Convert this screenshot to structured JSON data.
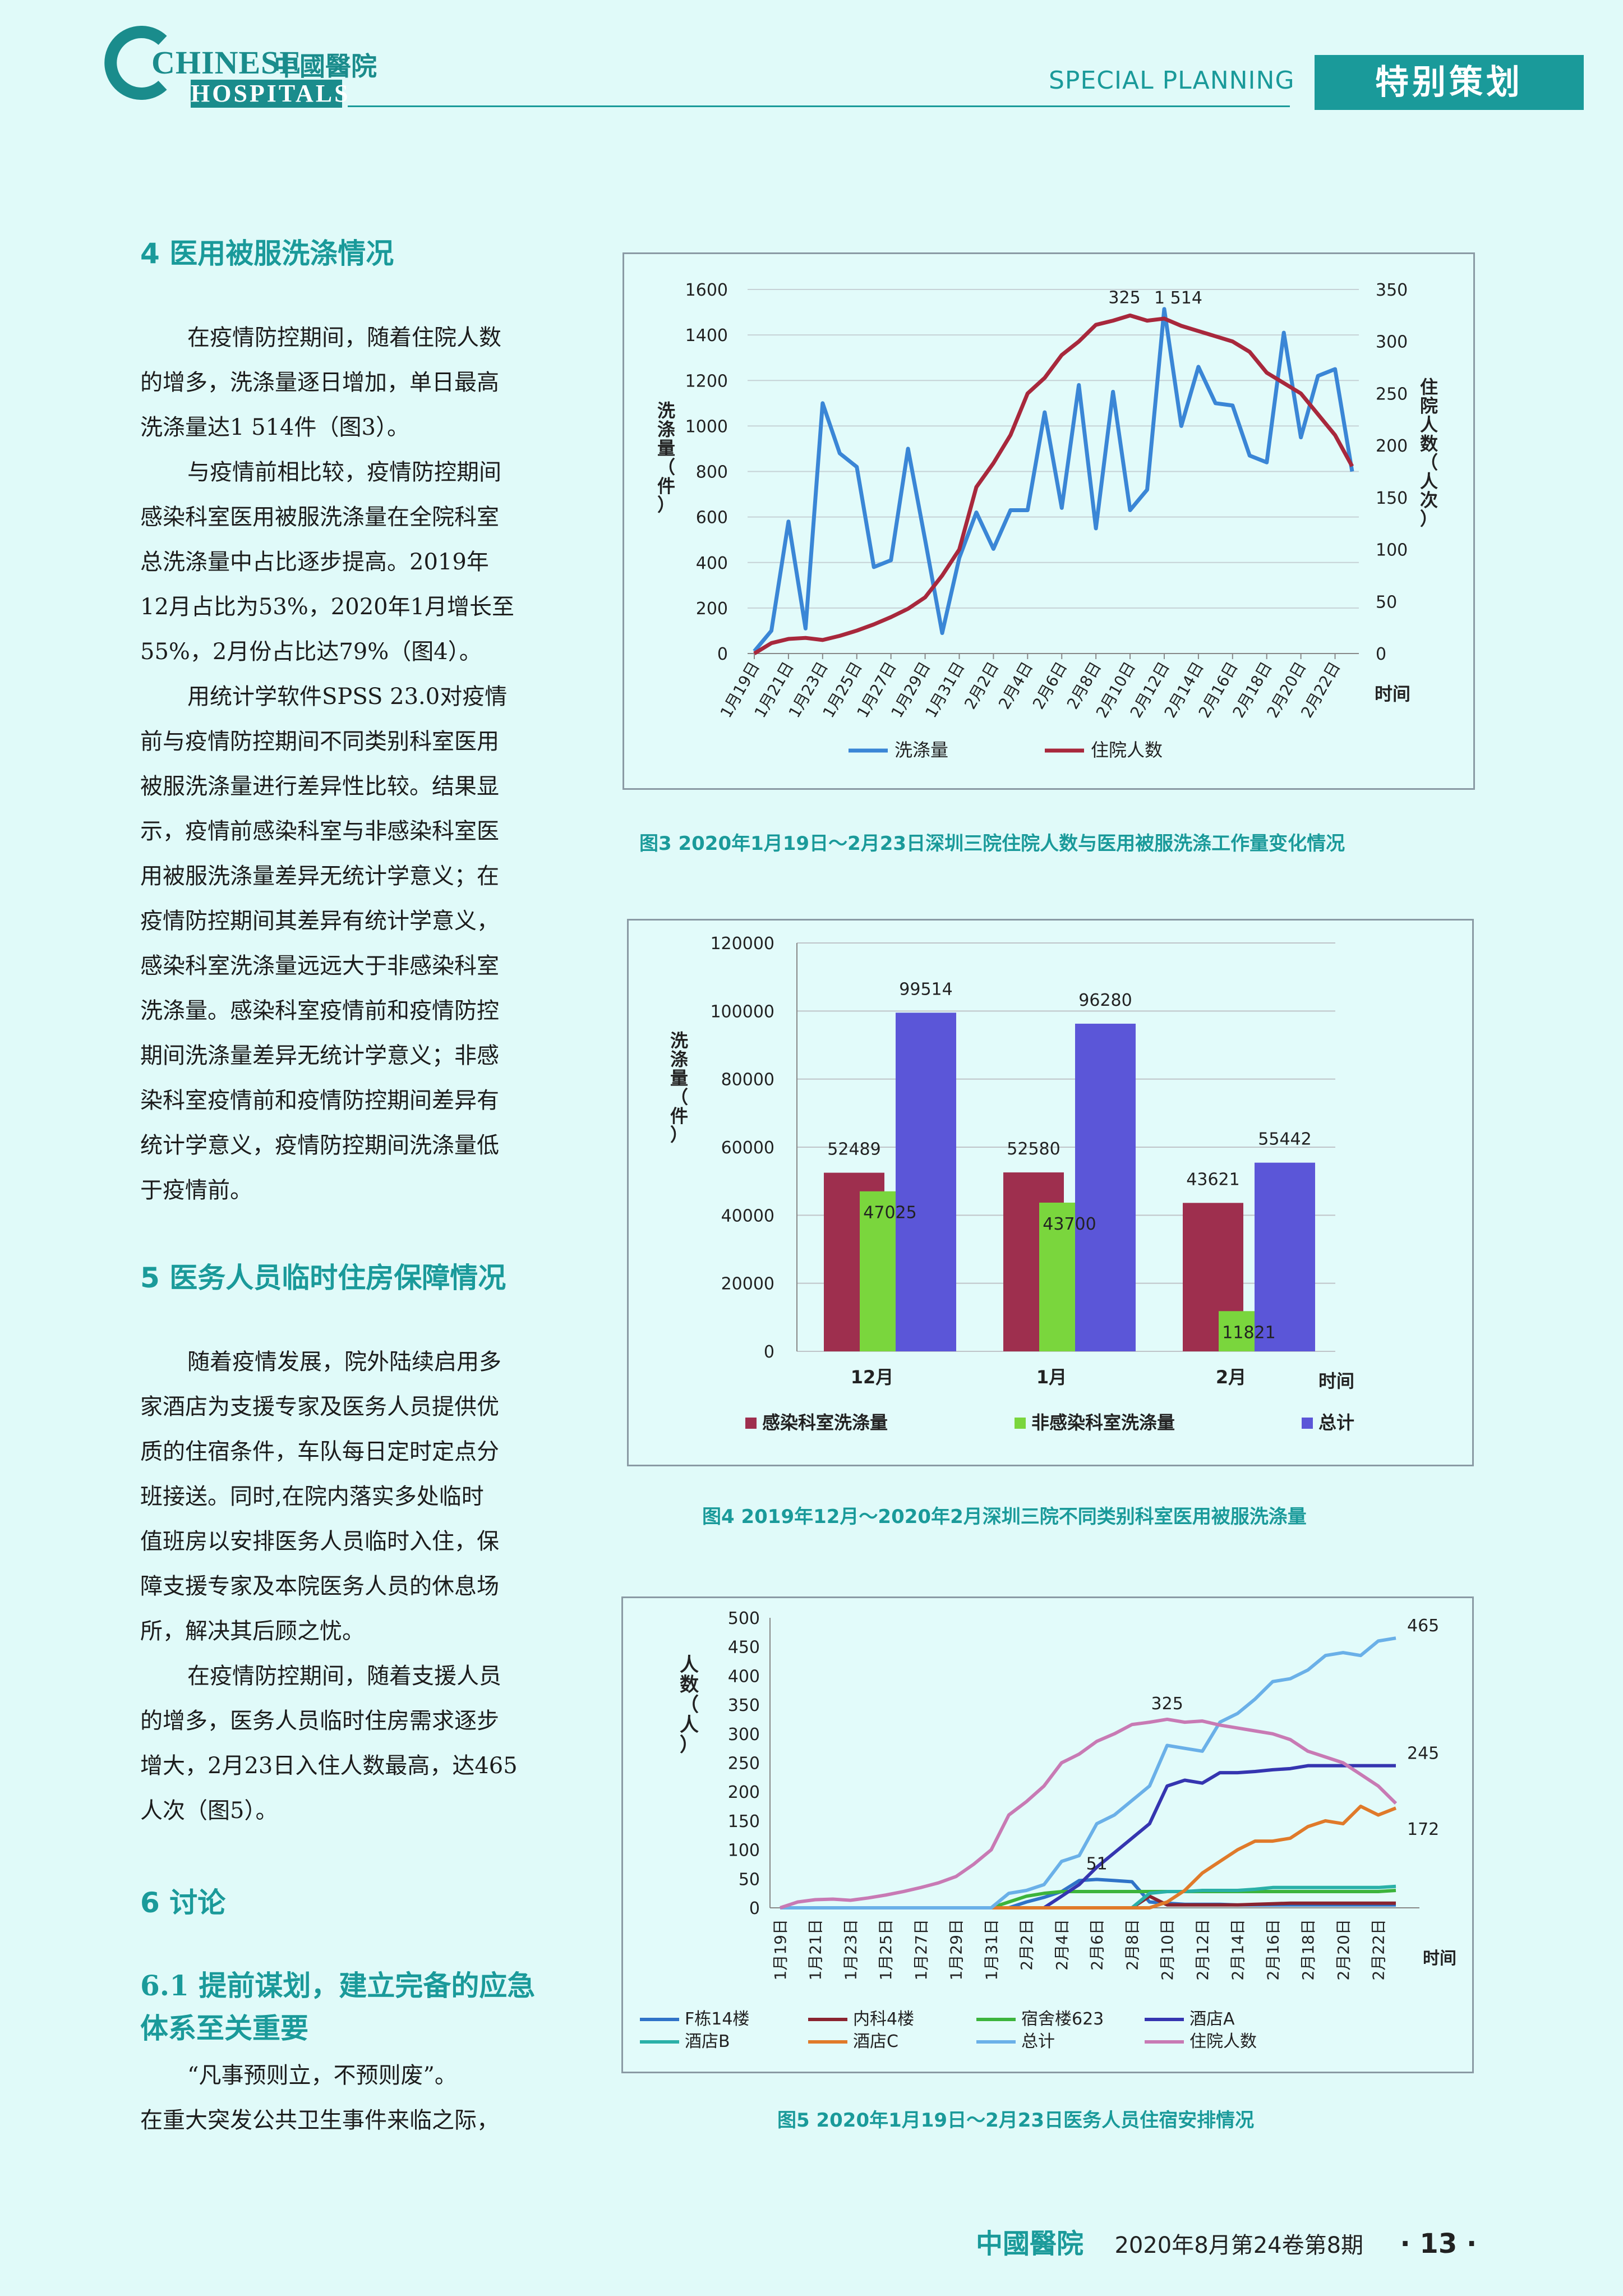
{
  "header": {
    "logo_en_1": "CHINESE",
    "logo_en_2": "HOSPITALS",
    "logo_cn": "中國醫院",
    "section_en": "SPECIAL PLANNING",
    "section_cn": "特别策划"
  },
  "sections": {
    "s4_title": "4  医用被服洗涤情况",
    "s4_p1": [
      "在疫情防控期间，随着住院人数",
      "的增多，洗涤量逐日增加，单日最高",
      "洗涤量达1 514件（图3）。"
    ],
    "s4_p2": [
      "与疫情前相比较，疫情防控期间",
      "感染科室医用被服洗涤量在全院科室",
      "总洗涤量中占比逐步提高。2019年",
      "12月占比为53%，2020年1月增长至",
      "55%，2月份占比达79%（图4）。"
    ],
    "s4_p3": [
      "用统计学软件SPSS 23.0对疫情",
      "前与疫情防控期间不同类别科室医用",
      "被服洗涤量进行差异性比较。结果显",
      "示，疫情前感染科室与非感染科室医",
      "用被服洗涤量差异无统计学意义；在",
      "疫情防控期间其差异有统计学意义，",
      "感染科室洗涤量远远大于非感染科室",
      "洗涤量。感染科室疫情前和疫情防控",
      "期间洗涤量差异无统计学意义；非感",
      "染科室疫情前和疫情防控期间差异有",
      "统计学意义，疫情防控期间洗涤量低",
      "于疫情前。"
    ],
    "s5_title": "5  医务人员临时住房保障情况",
    "s5_p1": [
      "随着疫情发展，院外陆续启用多",
      "家酒店为支援专家及医务人员提供优",
      "质的住宿条件，车队每日定时定点分",
      "班接送。同时,在院内落实多处临时",
      "值班房以安排医务人员临时入住，保",
      "障支援专家及本院医务人员的休息场",
      "所，解决其后顾之忧。"
    ],
    "s5_p2": [
      "在疫情防控期间，随着支援人员",
      "的增多，医务人员临时住房需求逐步",
      "增大，2月23日入住人数最高，达465",
      "人次（图5）。"
    ],
    "s6_title": "6  讨论",
    "s61_title": [
      "6.1 提前谋划，建立完备的应急",
      "体系至关重要"
    ],
    "s61_p1": [
      "“凡事预则立，不预则废”。",
      "在重大突发公共卫生事件来临之际，"
    ]
  },
  "captions": {
    "fig3": "图3  2020年1月19日～2月23日深圳三院住院人数与医用被服洗涤工作量变化情况",
    "fig4": "图4  2019年12月～2020年2月深圳三院不同类别科室医用被服洗涤量",
    "fig5": "图5  2020年1月19日～2月23日医务人员住宿安排情况"
  },
  "footer": {
    "journal": "中國醫院",
    "issue": "2020年8月第24卷第8期",
    "page": "· 13 ·"
  },
  "chart_data": [
    {
      "type": "line",
      "ylabel": "洗涤量（件）",
      "y2label": "住院人数（人次）",
      "xlabel": "时间",
      "ylim": [
        0,
        1600
      ],
      "y2lim": [
        0,
        350
      ],
      "yticks": [
        "0",
        "200",
        "400",
        "600",
        "800",
        "1000",
        "1200",
        "1400",
        "1600"
      ],
      "y2ticks": [
        "0",
        "50",
        "100",
        "150",
        "200",
        "250",
        "300",
        "350"
      ],
      "xticks": [
        "1月19日",
        "1月21日",
        "1月23日",
        "1月25日",
        "1月27日",
        "1月29日",
        "1月31日",
        "2月2日",
        "2月4日",
        "2月6日",
        "2月8日",
        "2月10日",
        "2月12日",
        "2月14日",
        "2月16日",
        "2月18日",
        "2月20日",
        "2月22日"
      ],
      "x": [
        "1月19日",
        "1月20日",
        "1月21日",
        "1月22日",
        "1月23日",
        "1月24日",
        "1月25日",
        "1月26日",
        "1月27日",
        "1月28日",
        "1月29日",
        "1月30日",
        "1月31日",
        "2月1日",
        "2月2日",
        "2月3日",
        "2月4日",
        "2月5日",
        "2月6日",
        "2月7日",
        "2月8日",
        "2月9日",
        "2月10日",
        "2月11日",
        "2月12日",
        "2月13日",
        "2月14日",
        "2月15日",
        "2月16日",
        "2月17日",
        "2月18日",
        "2月19日",
        "2月20日",
        "2月21日",
        "2月22日",
        "2月23日"
      ],
      "series": [
        {
          "name": "洗涤量",
          "axis": "left",
          "color": "#3a86d6",
          "values": [
            10,
            100,
            580,
            110,
            1100,
            880,
            820,
            380,
            410,
            900,
            500,
            90,
            420,
            620,
            460,
            630,
            630,
            1060,
            640,
            1180,
            550,
            1150,
            630,
            720,
            1514,
            1000,
            1260,
            1100,
            1090,
            870,
            840,
            1410,
            950,
            1220,
            1250,
            800
          ]
        },
        {
          "name": "住院人数",
          "axis": "right",
          "color": "#a8283c",
          "values": [
            0,
            10,
            14,
            15,
            13,
            17,
            22,
            28,
            35,
            43,
            54,
            75,
            100,
            160,
            183,
            210,
            250,
            265,
            287,
            300,
            316,
            320,
            325,
            320,
            322,
            315,
            310,
            305,
            300,
            290,
            270,
            260,
            250,
            230,
            210,
            180
          ]
        }
      ],
      "annotations": [
        "325",
        "1 514"
      ]
    },
    {
      "type": "bar",
      "ylabel": "洗涤量（件）",
      "xlabel": "时间",
      "ylim": [
        0,
        120000
      ],
      "yticks": [
        "0",
        "20000",
        "40000",
        "60000",
        "80000",
        "100000",
        "120000"
      ],
      "categories": [
        "12月",
        "1月",
        "2月"
      ],
      "series": [
        {
          "name": "感染科室洗涤量",
          "color": "#9e2f4e",
          "values": [
            52489,
            52580,
            43621
          ],
          "labels": [
            "52489",
            "52580",
            "43621"
          ]
        },
        {
          "name": "非感染科室洗涤量",
          "color": "#7ad63d",
          "values": [
            47025,
            43700,
            11821
          ],
          "labels": [
            "47025",
            "43700",
            "11821"
          ]
        },
        {
          "name": "总计",
          "color": "#5b56d8",
          "values": [
            99514,
            96280,
            55442
          ],
          "labels": [
            "99514",
            "96280",
            "55442"
          ]
        }
      ]
    },
    {
      "type": "line",
      "ylabel": "人数（人）",
      "xlabel": "时间",
      "ylim": [
        0,
        500
      ],
      "yticks": [
        "0",
        "50",
        "100",
        "150",
        "200",
        "250",
        "300",
        "350",
        "400",
        "450",
        "500"
      ],
      "xticks": [
        "1月19日",
        "1月21日",
        "1月23日",
        "1月25日",
        "1月27日",
        "1月29日",
        "1月31日",
        "2月2日",
        "2月4日",
        "2月6日",
        "2月8日",
        "2月10日",
        "2月12日",
        "2月14日",
        "2月16日",
        "2月18日",
        "2月20日",
        "2月22日"
      ],
      "series": [
        {
          "name": "F栋14楼",
          "color": "#2f73c8",
          "values": [
            0,
            0,
            0,
            0,
            0,
            0,
            0,
            0,
            0,
            0,
            0,
            0,
            0,
            0,
            10,
            18,
            28,
            47,
            49,
            47,
            45,
            10,
            8,
            6,
            6,
            6,
            5,
            5,
            5,
            5,
            5,
            5,
            5,
            5,
            5,
            5
          ]
        },
        {
          "name": "内科4楼",
          "color": "#8a2430",
          "values": [
            0,
            0,
            0,
            0,
            0,
            0,
            0,
            0,
            0,
            0,
            0,
            0,
            0,
            0,
            0,
            0,
            0,
            0,
            0,
            0,
            0,
            20,
            5,
            5,
            5,
            5,
            5,
            6,
            7,
            8,
            8,
            8,
            8,
            8,
            8,
            8
          ]
        },
        {
          "name": "宿舍楼623",
          "color": "#3cb43c",
          "values": [
            0,
            0,
            0,
            0,
            0,
            0,
            0,
            0,
            0,
            0,
            0,
            0,
            0,
            10,
            20,
            25,
            28,
            28,
            28,
            28,
            28,
            28,
            28,
            28,
            28,
            28,
            28,
            28,
            28,
            28,
            28,
            28,
            28,
            28,
            28,
            30
          ]
        },
        {
          "name": "酒店A",
          "color": "#3535b0",
          "values": [
            0,
            0,
            0,
            0,
            0,
            0,
            0,
            0,
            0,
            0,
            0,
            0,
            0,
            0,
            0,
            0,
            20,
            40,
            70,
            95,
            120,
            145,
            210,
            220,
            215,
            233,
            233,
            235,
            238,
            240,
            245,
            245,
            245,
            245,
            245,
            245
          ]
        },
        {
          "name": "酒店B",
          "color": "#2ab0a8",
          "values": [
            0,
            0,
            0,
            0,
            0,
            0,
            0,
            0,
            0,
            0,
            0,
            0,
            0,
            0,
            0,
            0,
            0,
            0,
            0,
            0,
            0,
            25,
            28,
            28,
            30,
            30,
            30,
            32,
            35,
            35,
            35,
            35,
            35,
            35,
            35,
            37
          ]
        },
        {
          "name": "酒店C",
          "color": "#e07a2a",
          "values": [
            0,
            0,
            0,
            0,
            0,
            0,
            0,
            0,
            0,
            0,
            0,
            0,
            0,
            0,
            0,
            0,
            0,
            0,
            0,
            0,
            0,
            0,
            10,
            30,
            60,
            80,
            100,
            115,
            115,
            120,
            140,
            150,
            145,
            175,
            160,
            172
          ]
        },
        {
          "name": "总计",
          "color": "#6ab0e8",
          "values": [
            0,
            0,
            0,
            0,
            0,
            0,
            0,
            0,
            0,
            0,
            0,
            0,
            0,
            25,
            30,
            40,
            80,
            90,
            145,
            160,
            185,
            210,
            280,
            275,
            270,
            320,
            335,
            360,
            390,
            395,
            410,
            435,
            440,
            435,
            460,
            465
          ]
        },
        {
          "name": "住院人数",
          "color": "#c87ab4",
          "values": [
            0,
            10,
            14,
            15,
            13,
            17,
            22,
            28,
            35,
            43,
            54,
            75,
            100,
            160,
            183,
            210,
            250,
            265,
            287,
            300,
            316,
            320,
            325,
            320,
            322,
            315,
            310,
            305,
            300,
            290,
            270,
            260,
            250,
            230,
            210,
            180
          ]
        }
      ],
      "annotations": [
        "325",
        "51",
        "465",
        "245",
        "172"
      ]
    }
  ]
}
